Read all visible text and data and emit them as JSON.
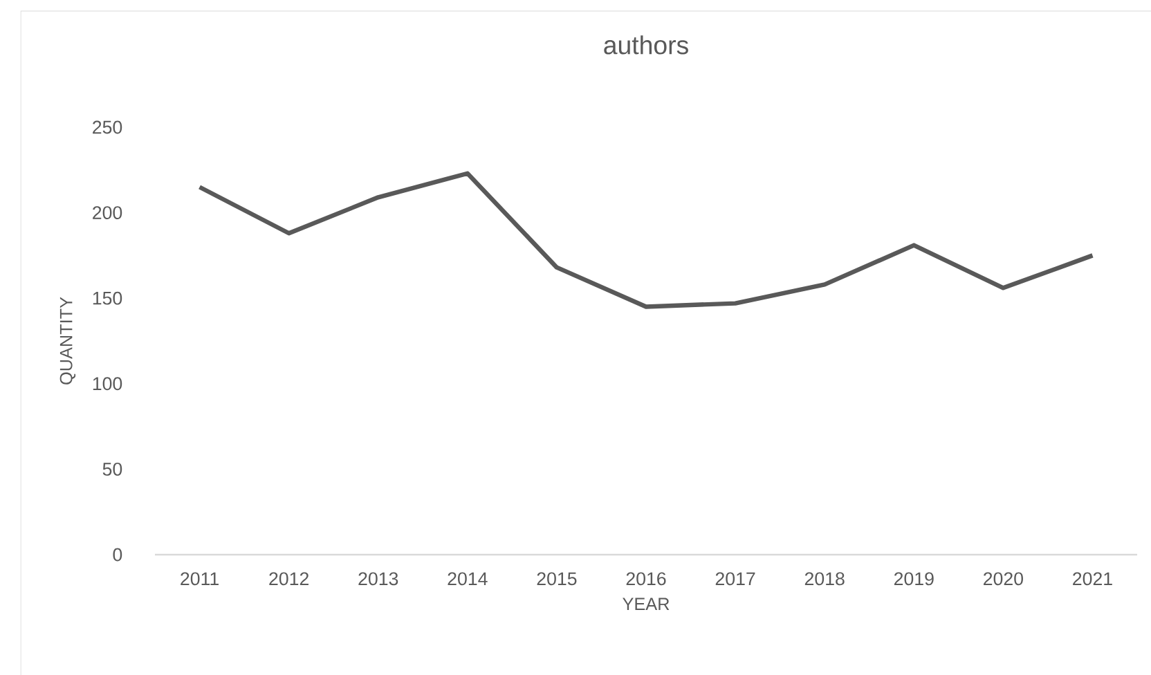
{
  "chart_data": {
    "type": "line",
    "title": "authors",
    "xlabel": "YEAR",
    "ylabel": "QUANTITY",
    "categories": [
      "2011",
      "2012",
      "2013",
      "2014",
      "2015",
      "2016",
      "2017",
      "2018",
      "2019",
      "2020",
      "2021"
    ],
    "series": [
      {
        "color": "#595959",
        "values": [
          215,
          188,
          209,
          223,
          168,
          145,
          147,
          158,
          181,
          156,
          175
        ]
      }
    ],
    "ylim": [
      0,
      250
    ],
    "yticks": [
      0,
      50,
      100,
      150,
      200,
      250
    ],
    "marker": "none",
    "line_style": "solid"
  }
}
